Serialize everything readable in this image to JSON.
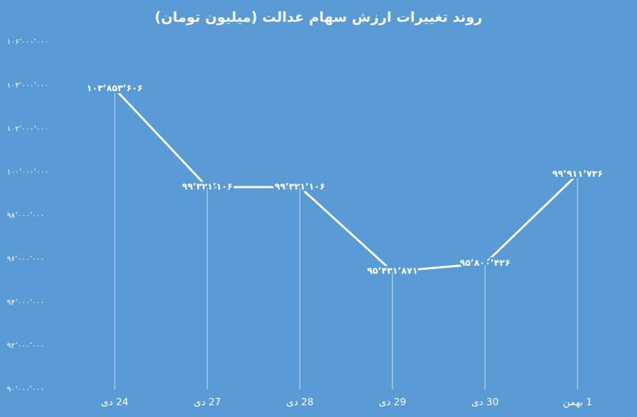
{
  "chart_data": {
    "type": "line",
    "title": "روند تغییرات ارزش سهام عدالت (میلیون تومان)",
    "categories": [
      "24 دی",
      "27 دی",
      "28 دی",
      "29 دی",
      "30 دی",
      "1 بهمن"
    ],
    "values": [
      103853606,
      99321106,
      99321106,
      95431871,
      95800426,
      99911736
    ],
    "value_labels": [
      "۱۰۳٬۸۵۳٬۶۰۶",
      "۹۹٬۳۲۱٬۱۰۶",
      "۹۹٬۳۲۱٬۱۰۶",
      "۹۵٬۴۳۱٬۸۷۱",
      "۹۵٬۸۰۰٬۴۲۶",
      "۹۹٬۹۱۱٬۷۳۶"
    ],
    "color": "#ffffff",
    "background": "#5b9bd5",
    "drop_lines": true,
    "ylim": [
      90000000,
      106000000
    ],
    "yticks": [
      {
        "value": 90000000,
        "label": "۹۰٬۰۰۰٬۰۰۰"
      },
      {
        "value": 92000000,
        "label": "۹۲٬۰۰۰٬۰۰۰"
      },
      {
        "value": 94000000,
        "label": "۹۴٬۰۰۰٬۰۰۰"
      },
      {
        "value": 96000000,
        "label": "۹۶٬۰۰۰٬۰۰۰"
      },
      {
        "value": 98000000,
        "label": "۹۸٬۰۰۰٬۰۰۰"
      },
      {
        "value": 100000000,
        "label": "۱۰۰٬۰۰۰٬۰۰۰"
      },
      {
        "value": 102000000,
        "label": "۱۰۲٬۰۰۰٬۰۰۰"
      },
      {
        "value": 104000000,
        "label": "۱۰۴٬۰۰۰٬۰۰۰"
      },
      {
        "value": 106000000,
        "label": "۱۰۶٬۰۰۰٬۰۰۰"
      }
    ],
    "grid": false
  }
}
